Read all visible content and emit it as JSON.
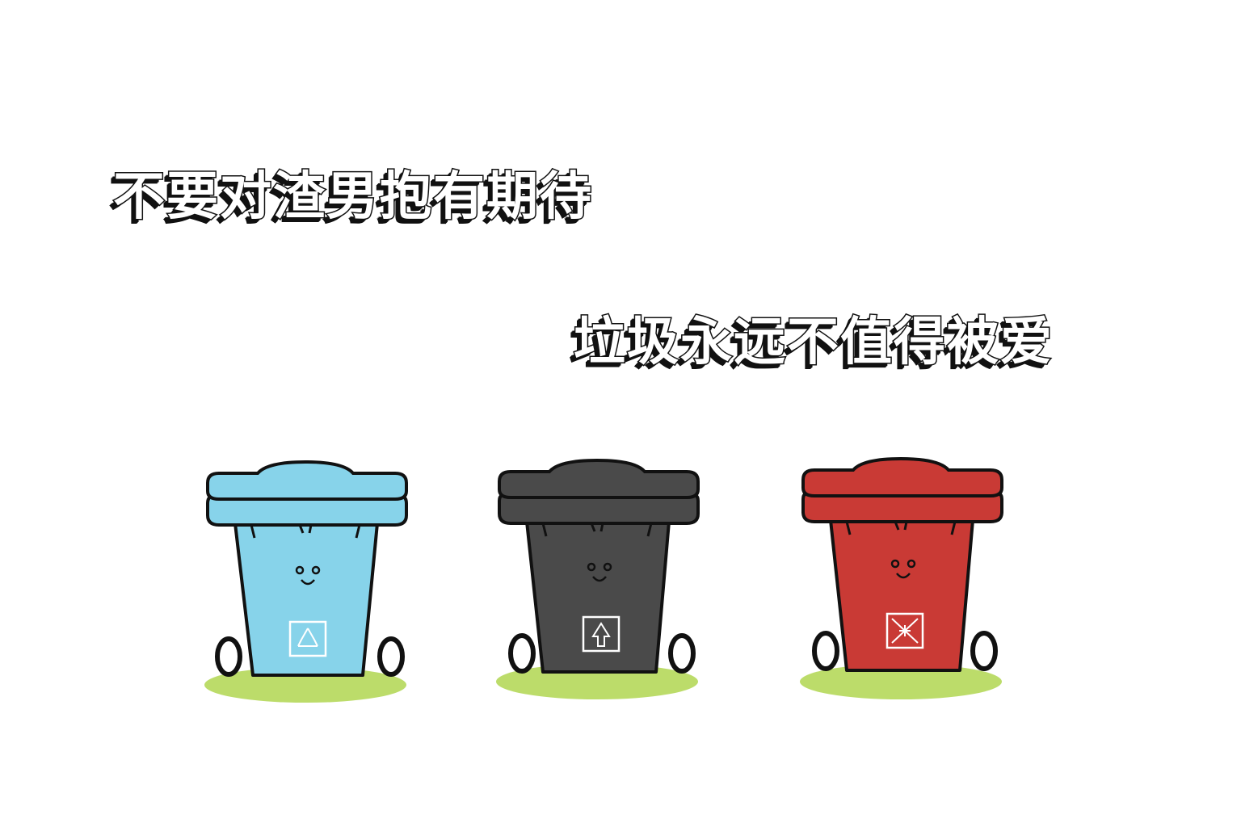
{
  "captions": {
    "line1": "不要对渣男抱有期待",
    "line2": "垃圾永远不值得被爱"
  },
  "bins": [
    {
      "color": "#87d3ea",
      "symbol": "recycle-icon"
    },
    {
      "color": "#4a4a4a",
      "symbol": "other-waste-icon"
    },
    {
      "color": "#c93a35",
      "symbol": "hazardous-waste-icon"
    }
  ],
  "colors": {
    "grass": "#b5d85a",
    "outline": "#111111",
    "background": "#ffffff"
  }
}
